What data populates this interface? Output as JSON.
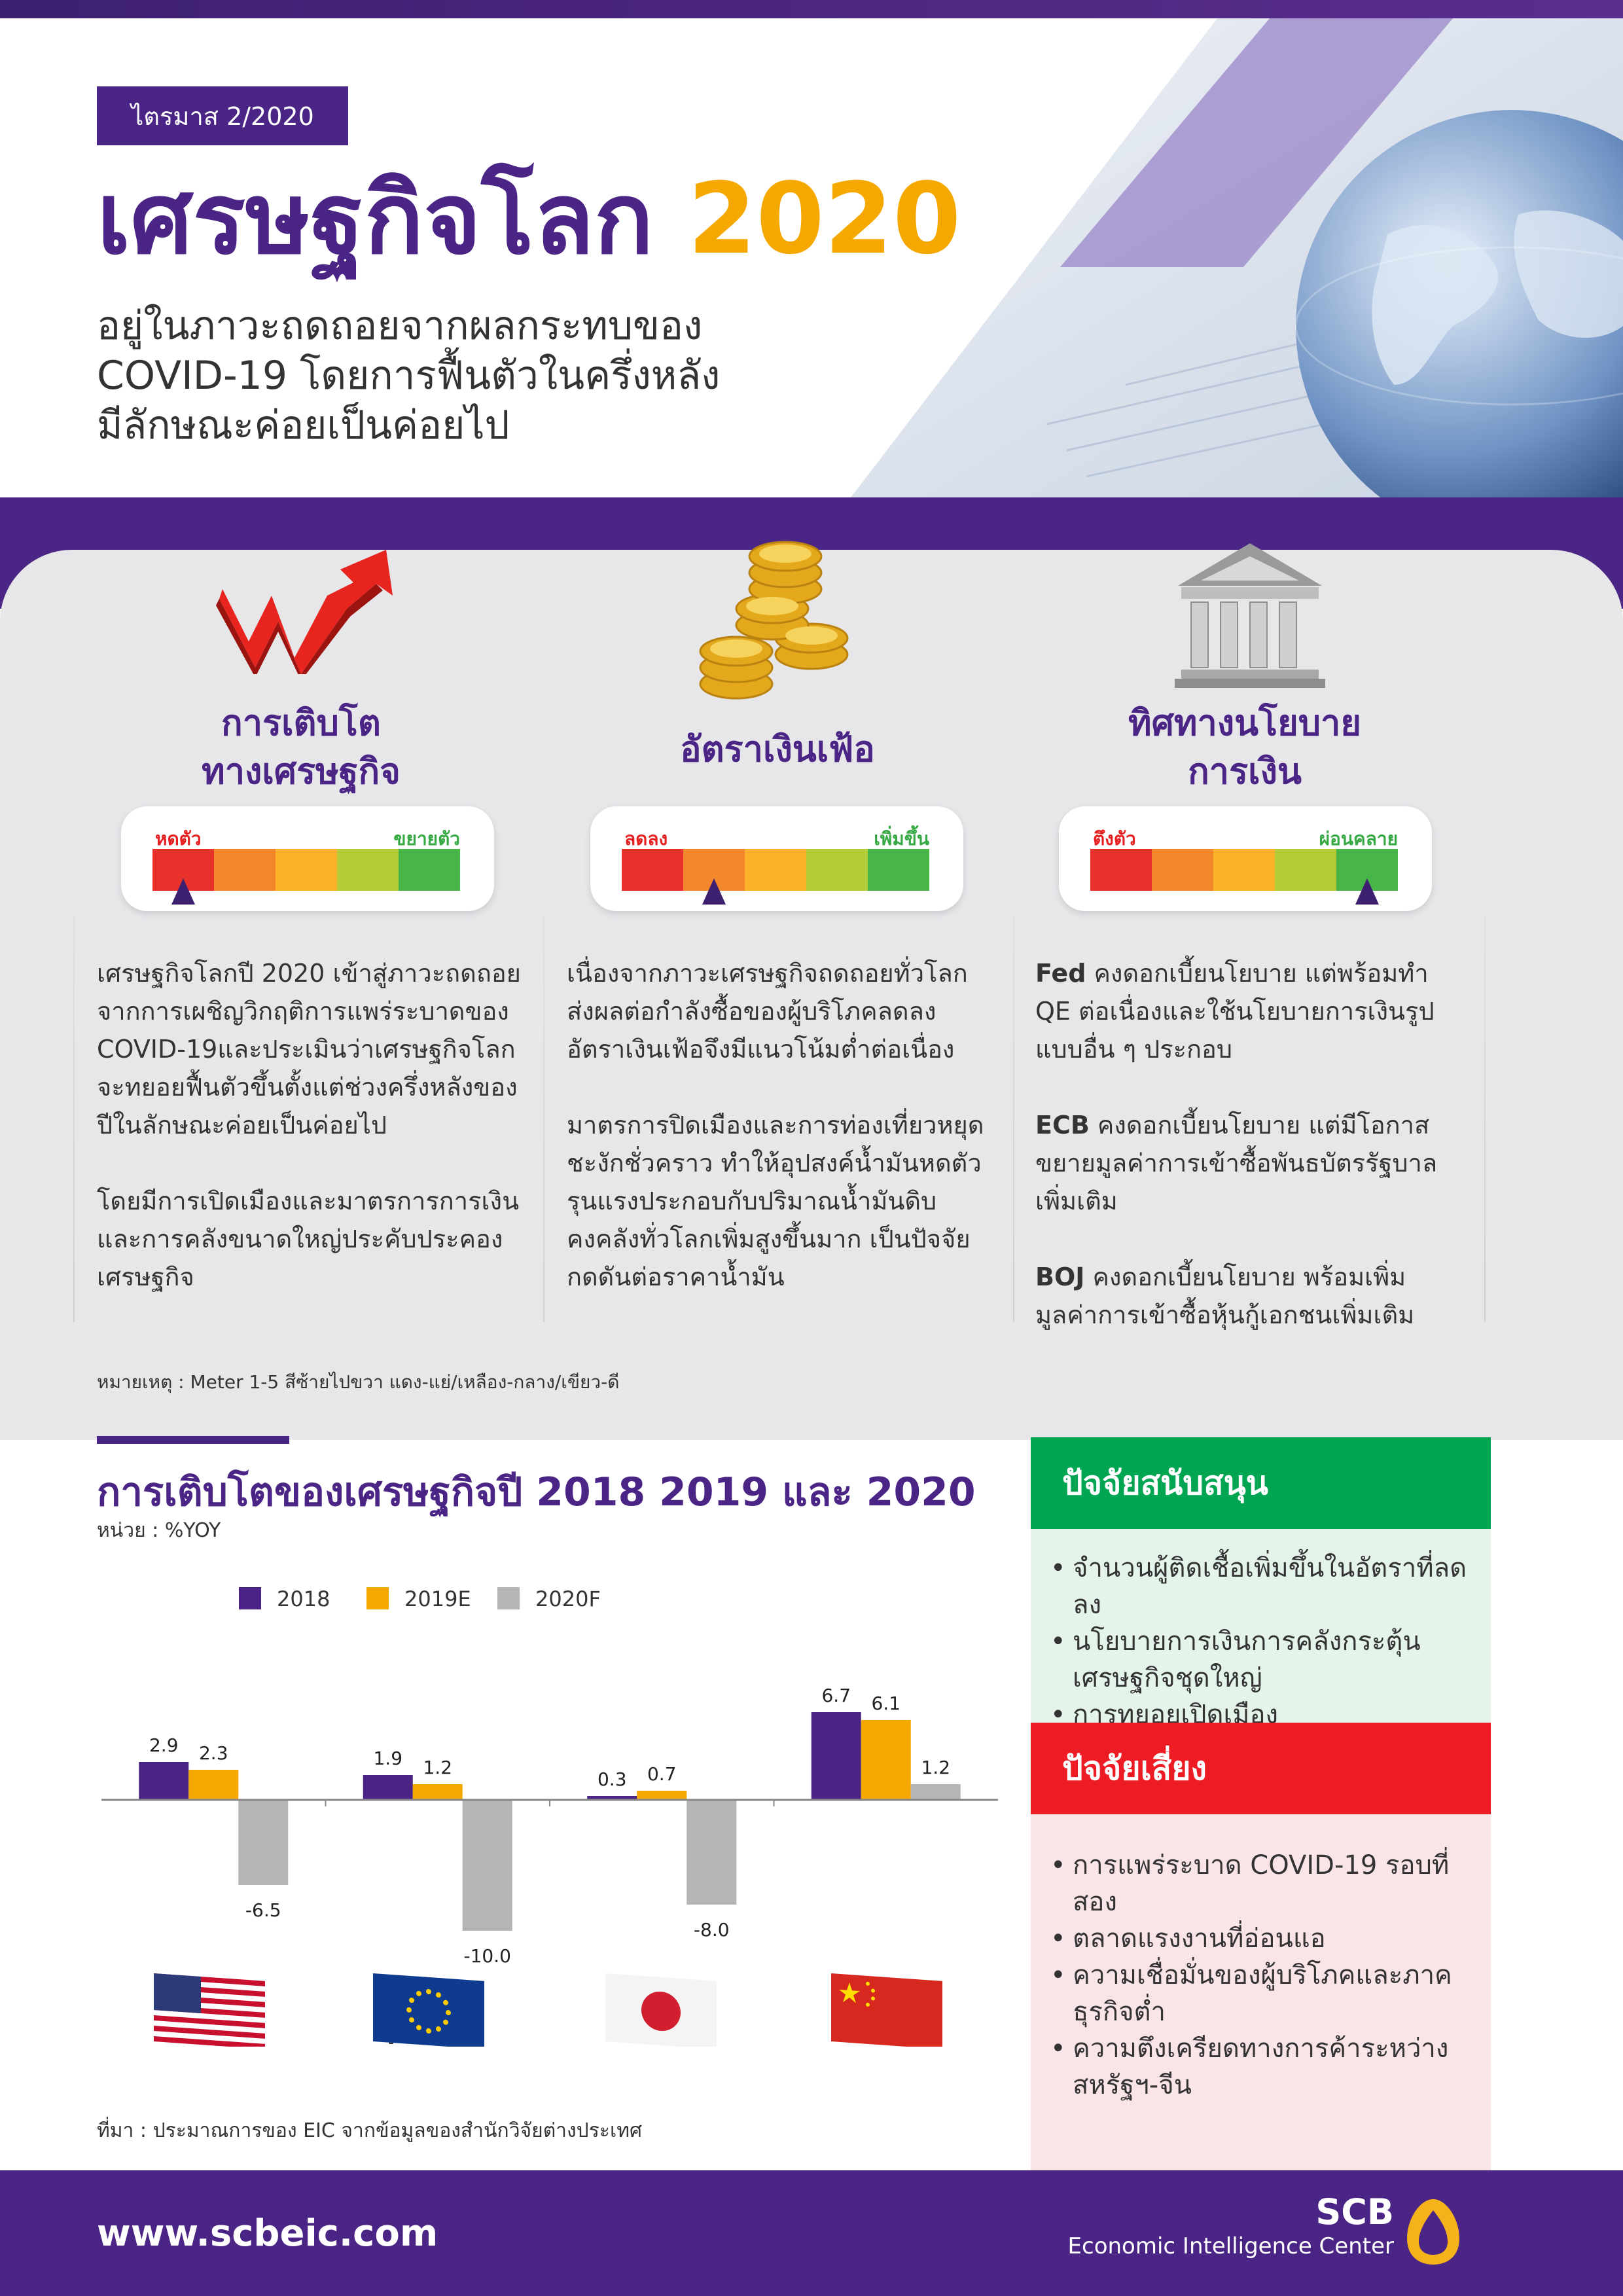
{
  "header": {
    "quarter": "ไตรมาส 2/2020",
    "title_main": "เศรษฐกิจโลก",
    "title_year": "2020",
    "subtitle_lines": [
      "อยู่ในภาวะถดถอยจากผลกระทบของ",
      "COVID-19 โดยการฟื้นตัวในครึ่งหลัง",
      "มีลักษณะค่อยเป็นค่อยไป"
    ]
  },
  "colors": {
    "purple": "#4b2585",
    "gold": "#f5a800",
    "grey_bar": "#b5b5b5",
    "green": "#00a551",
    "red": "#ed1c24",
    "meter": [
      "#e8312a",
      "#f2872b",
      "#fbb22a",
      "#b5cb38",
      "#48b549"
    ]
  },
  "columns": [
    {
      "icon": "growth-arrow-icon",
      "title_lines": [
        "การเติบโต",
        "ทางเศรษฐกิจ"
      ],
      "meter_left": "หดตัว",
      "meter_right": "ขยายตัว",
      "meter_level": 1,
      "paragraphs": [
        "เศรษฐกิจโลกปี 2020 เข้าสู่ภาวะถดถอยจากการเผชิญวิกฤติการแพร่ระบาดของ COVID-19และประเมินว่าเศรษฐกิจโลกจะทยอยฟื้นตัวขึ้นตั้งแต่ช่วงครึ่งหลังของปีในลักษณะค่อยเป็นค่อยไป",
        "โดยมีการเปิดเมืองและมาตรการการเงินและการคลังขนาดใหญ่ประคับประคองเศรษฐกิจ"
      ]
    },
    {
      "icon": "coins-icon",
      "title_lines": [
        "อัตราเงินเฟ้อ"
      ],
      "meter_left": "ลดลง",
      "meter_right": "เพิ่มขึ้น",
      "meter_level": 2,
      "paragraphs": [
        "เนื่องจากภาวะเศรษฐกิจถดถอยทั่วโลก ส่งผลต่อกำลังซื้อของผู้บริโภคลดลง อัตราเงินเฟ้อจึงมีแนวโน้มต่ำต่อเนื่อง",
        "มาตรการปิดเมืองและการท่องเที่ยวหยุดชะงักชั่วคราว ทำให้อุปสงค์น้ำมันหดตัวรุนแรงประกอบกับปริมาณน้ำมันดิบคงคลังทั่วโลกเพิ่มสูงขึ้นมาก เป็นปัจจัยกดดันต่อราคาน้ำมัน"
      ]
    },
    {
      "icon": "bank-icon",
      "title_lines": [
        "ทิศทางนโยบาย",
        "การเงิน"
      ],
      "meter_left": "ตึงตัว",
      "meter_right": "ผ่อนคลาย",
      "meter_level": 5,
      "policies": [
        {
          "bank": "Fed",
          "text": " คงดอกเบี้ยนโยบาย แต่พร้อมทำ QE ต่อเนื่องและใช้นโยบายการเงินรูปแบบอื่น ๆ ประกอบ"
        },
        {
          "bank": "ECB",
          "text": " คงดอกเบี้ยนโยบาย แต่มีโอกาสขยายมูลค่าการเข้าซื้อพันธบัตรรัฐบาลเพิ่มเติม"
        },
        {
          "bank": "BOJ",
          "text": " คงดอกเบี้ยนโยบาย พร้อมเพิ่มมูลค่าการเข้าซื้อหุ้นกู้เอกชนเพิ่มเติม"
        }
      ]
    }
  ],
  "note": "หมายเหตุ : Meter 1-5 สีซ้ายไปขวา แดง-แย่/เหลือง-กลาง/เขียว-ดี",
  "chart_data": {
    "type": "bar",
    "title": "การเติบโตของเศรษฐกิจปี 2018 2019 และ 2020",
    "unit": "หน่วย : %YOY",
    "categories": [
      "สหรัฐฯ",
      "ยูโรโซน",
      "ญี่ปุ่น",
      "จีน"
    ],
    "series": [
      {
        "name": "2018",
        "values": [
          2.9,
          1.9,
          0.3,
          6.7
        ],
        "color": "#4b2585"
      },
      {
        "name": "2019E",
        "values": [
          2.3,
          1.2,
          0.7,
          6.1
        ],
        "color": "#f5a800"
      },
      {
        "name": "2020F",
        "values": [
          -6.5,
          -10.0,
          -8.0,
          1.2
        ],
        "color": "#b5b5b5"
      }
    ],
    "value_labels": [
      [
        "2.9",
        "1.9",
        "0.3",
        "6.7"
      ],
      [
        "2.3",
        "1.2",
        "0.7",
        "6.1"
      ],
      [
        "-6.5",
        "-10.0",
        "-8.0",
        "1.2"
      ]
    ],
    "ylim": [
      -10.5,
      7.5
    ],
    "legend": "top",
    "grid": false
  },
  "source": "ที่มา : ประมาณการของ EIC จากข้อมูลของสำนักวิจัยต่างประเทศ",
  "support": {
    "title": "ปัจจัยสนับสนุน",
    "items": [
      "จำนวนผู้ติดเชื้อเพิ่มขึ้นในอัตราที่ลดลง",
      "นโยบายการเงินการคลังกระตุ้นเศรษฐกิจชุดใหญ่",
      "การทยอยเปิดเมือง"
    ]
  },
  "risk": {
    "title": "ปัจจัยเสี่ยง",
    "items": [
      "การแพร่ระบาด COVID-19 รอบที่สอง",
      "ตลาดแรงงานที่อ่อนแอ",
      "ความเชื่อมั่นของผู้บริโภคและภาคธุรกิจต่ำ",
      "ความตึงเครียดทางการค้าระหว่างสหรัฐฯ-จีน"
    ]
  },
  "footer": {
    "website": "www.scbeic.com",
    "brand": "SCB",
    "brand_sub": "Economic Intelligence Center"
  }
}
